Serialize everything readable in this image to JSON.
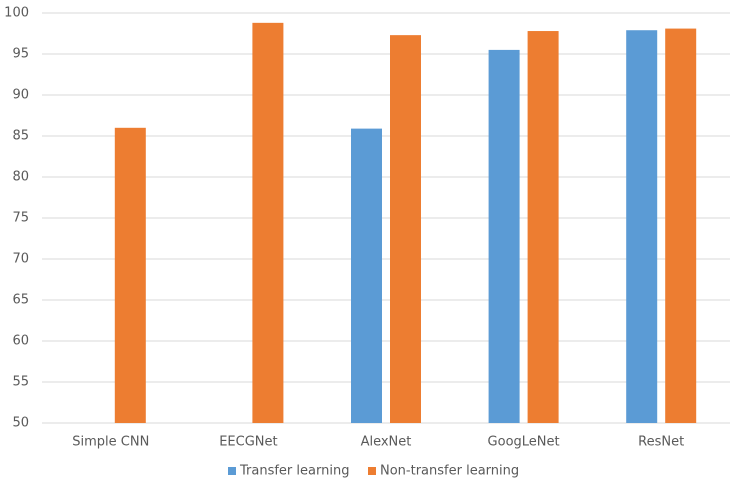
{
  "chart_data": {
    "type": "bar",
    "categories": [
      "Simple CNN",
      "EECGNet",
      "AlexNet",
      "GoogLeNet",
      "ResNet"
    ],
    "series": [
      {
        "name": "Transfer learning",
        "color": "#5b9bd5",
        "values": [
          null,
          null,
          85.9,
          95.5,
          97.9
        ]
      },
      {
        "name": "Non-transfer learning",
        "color": "#ed7d31",
        "values": [
          86.0,
          98.8,
          97.3,
          97.8,
          98.1
        ]
      }
    ],
    "ylim": [
      50,
      100
    ],
    "yticks": [
      50,
      55,
      60,
      65,
      70,
      75,
      80,
      85,
      90,
      95,
      100
    ],
    "grid": true,
    "legend": "bottom"
  }
}
